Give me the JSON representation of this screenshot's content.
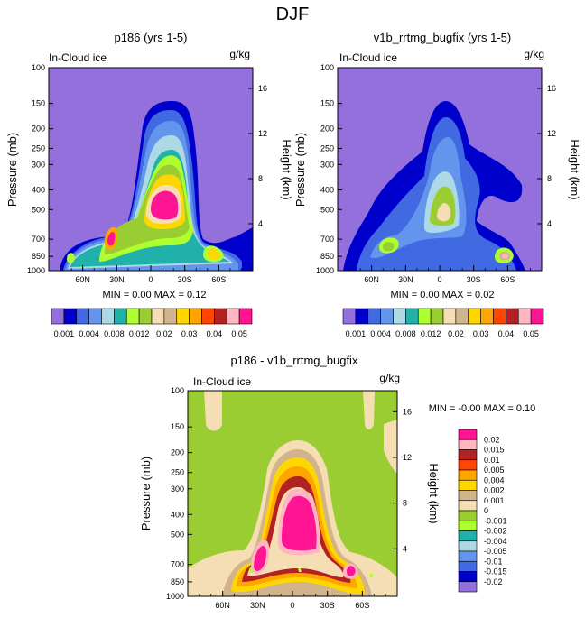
{
  "page_title": "DJF",
  "colors": {
    "field_top": [
      "#9370DB",
      "#0000CD",
      "#4169E1",
      "#6495ED",
      "#ADD8E6",
      "#20B2AA",
      "#ADFF2F",
      "#9ACD32",
      "#F5DEB3",
      "#D2B48C",
      "#FFD700",
      "#FFA500",
      "#FF4500",
      "#B22222",
      "#FFB6C1",
      "#FF1493"
    ],
    "field_diff": [
      "#9370DB",
      "#0000CD",
      "#4169E1",
      "#6495ED",
      "#ADD8E6",
      "#20B2AA",
      "#ADFF2F",
      "#9ACD32",
      "#F5DEB3",
      "#D2B48C",
      "#FFD700",
      "#FFA500",
      "#FF4500",
      "#B22222",
      "#FFB6C1",
      "#FF1493"
    ]
  },
  "chart_data": [
    {
      "type": "heatmap",
      "title": "p186 (yrs 1-5)",
      "left_label": "In-Cloud ice",
      "right_label": "g/kg",
      "ylabel": "Pressure (mb)",
      "y2label": "Height (km)",
      "y_ticks": [
        "100",
        "150",
        "200",
        "250",
        "300",
        "400",
        "500",
        "700",
        "850",
        "1000"
      ],
      "y2_ticks": [
        "16",
        "12",
        "8",
        "4"
      ],
      "x_ticks": [
        "60N",
        "30N",
        "0",
        "30S",
        "60S"
      ],
      "stats": "MIN =  0.00  MAX =  0.12",
      "peak": {
        "lat": 0,
        "pressure_mb": 500,
        "value": 0.12
      },
      "secondary_peaks": [
        {
          "lat": "40N",
          "pressure_mb": 700
        },
        {
          "lat": "50S",
          "pressure_mb": 800
        }
      ]
    },
    {
      "type": "heatmap",
      "title": "v1b_rrtmg_bugfix (yrs 1-5)",
      "left_label": "In-Cloud ice",
      "right_label": "g/kg",
      "ylabel": "Pressure (mb)",
      "y2label": "Height (km)",
      "y_ticks": [
        "100",
        "150",
        "200",
        "250",
        "300",
        "400",
        "500",
        "700",
        "850",
        "1000"
      ],
      "y2_ticks": [
        "16",
        "12",
        "8",
        "4"
      ],
      "x_ticks": [
        "60N",
        "30N",
        "0",
        "30S",
        "60S"
      ],
      "stats": "MIN =  0.00  MAX =  0.02",
      "peak": {
        "lat": 0,
        "pressure_mb": 500,
        "value": 0.02
      }
    },
    {
      "type": "heatmap",
      "title": "p186 - v1b_rrtmg_bugfix",
      "left_label": "In-Cloud ice",
      "right_label": "g/kg",
      "ylabel": "Pressure (mb)",
      "y2label": "Height (km)",
      "y_ticks": [
        "100",
        "150",
        "200",
        "250",
        "300",
        "400",
        "500",
        "700",
        "850",
        "1000"
      ],
      "y2_ticks": [
        "16",
        "12",
        "8",
        "4"
      ],
      "x_ticks": [
        "60N",
        "30N",
        "0",
        "30S",
        "60S"
      ],
      "stats": "MIN = -0.00  MAX =  0.10",
      "peak": {
        "lat": 0,
        "pressure_mb": 500,
        "value": 0.1
      }
    }
  ],
  "colorbar_top": {
    "labels": [
      "0.001",
      "0.004",
      "0.008",
      "0.012",
      "0.02",
      "0.03",
      "0.04",
      "0.05"
    ]
  },
  "colorbar_diff": {
    "labels": [
      "0.02",
      "0.015",
      "0.01",
      "0.005",
      "0.004",
      "0.002",
      "0.001",
      "0",
      "-0.001",
      "-0.002",
      "-0.004",
      "-0.005",
      "-0.01",
      "-0.015",
      "-0.02"
    ]
  }
}
